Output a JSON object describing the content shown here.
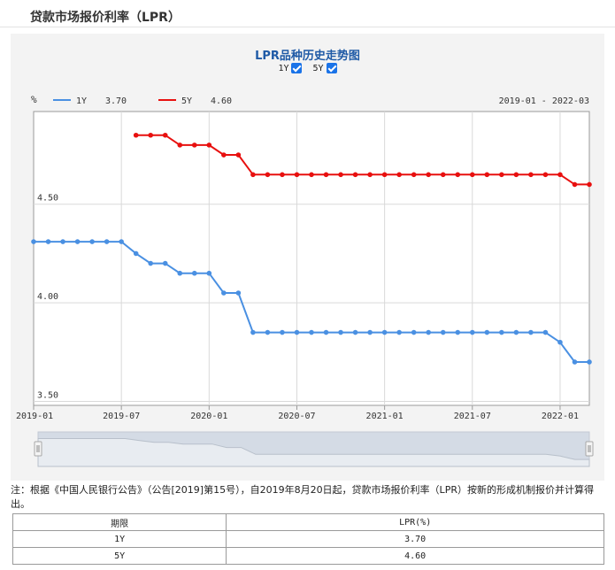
{
  "page": {
    "title": "贷款市场报价利率（LPR）"
  },
  "chart_controls": {
    "series_toggles": [
      {
        "label": "1Y",
        "checked": true
      },
      {
        "label": "5Y",
        "checked": true
      }
    ]
  },
  "note": "注：根据《中国人民银行公告》（公告[2019]第15号），自2019年8月20日起，贷款市场报价利率（LPR）按新的形成机制报价并计算得出。",
  "table": {
    "headers": [
      "期限",
      "LPR(%)"
    ],
    "rows": [
      [
        "1Y",
        "3.70"
      ],
      [
        "5Y",
        "4.60"
      ]
    ]
  },
  "chart_data": {
    "type": "line",
    "title": "LPR品种历史走势图",
    "ylabel": "%",
    "date_range": "2019-01 - 2022-03",
    "ylim": [
      3.48,
      4.97
    ],
    "yticks": [
      "4.50",
      "4.00",
      "3.50"
    ],
    "xticks": [
      "2019-01",
      "2019-07",
      "2020-01",
      "2020-07",
      "2021-01",
      "2021-07",
      "2022-01"
    ],
    "x": [
      "2019-01",
      "2019-02",
      "2019-03",
      "2019-04",
      "2019-05",
      "2019-06",
      "2019-07",
      "2019-08",
      "2019-09",
      "2019-10",
      "2019-11",
      "2019-12",
      "2020-01",
      "2020-02",
      "2020-03",
      "2020-04",
      "2020-05",
      "2020-06",
      "2020-07",
      "2020-08",
      "2020-09",
      "2020-10",
      "2020-11",
      "2020-12",
      "2021-01",
      "2021-02",
      "2021-03",
      "2021-04",
      "2021-05",
      "2021-06",
      "2021-07",
      "2021-08",
      "2021-09",
      "2021-10",
      "2021-11",
      "2021-12",
      "2022-01",
      "2022-02",
      "2022-03"
    ],
    "series": [
      {
        "name": "1Y",
        "legend_value": "3.70",
        "color": "#4a90e2",
        "values": [
          4.31,
          4.31,
          4.31,
          4.31,
          4.31,
          4.31,
          4.31,
          4.25,
          4.2,
          4.2,
          4.15,
          4.15,
          4.15,
          4.05,
          4.05,
          3.85,
          3.85,
          3.85,
          3.85,
          3.85,
          3.85,
          3.85,
          3.85,
          3.85,
          3.85,
          3.85,
          3.85,
          3.85,
          3.85,
          3.85,
          3.85,
          3.85,
          3.85,
          3.85,
          3.85,
          3.85,
          3.8,
          3.7,
          3.7
        ]
      },
      {
        "name": "5Y",
        "legend_value": "4.60",
        "color": "#e8100f",
        "values": [
          null,
          null,
          null,
          null,
          null,
          null,
          null,
          4.85,
          4.85,
          4.85,
          4.8,
          4.8,
          4.8,
          4.75,
          4.75,
          4.65,
          4.65,
          4.65,
          4.65,
          4.65,
          4.65,
          4.65,
          4.65,
          4.65,
          4.65,
          4.65,
          4.65,
          4.65,
          4.65,
          4.65,
          4.65,
          4.65,
          4.65,
          4.65,
          4.65,
          4.65,
          4.65,
          4.6,
          4.6
        ]
      }
    ],
    "grid": true,
    "navigator": true
  },
  "colors": {
    "line_1y": "#4a90e2",
    "line_5y": "#e8100f",
    "title_blue": "#1f5aa6",
    "checkbox_blue": "#1a73e8"
  }
}
